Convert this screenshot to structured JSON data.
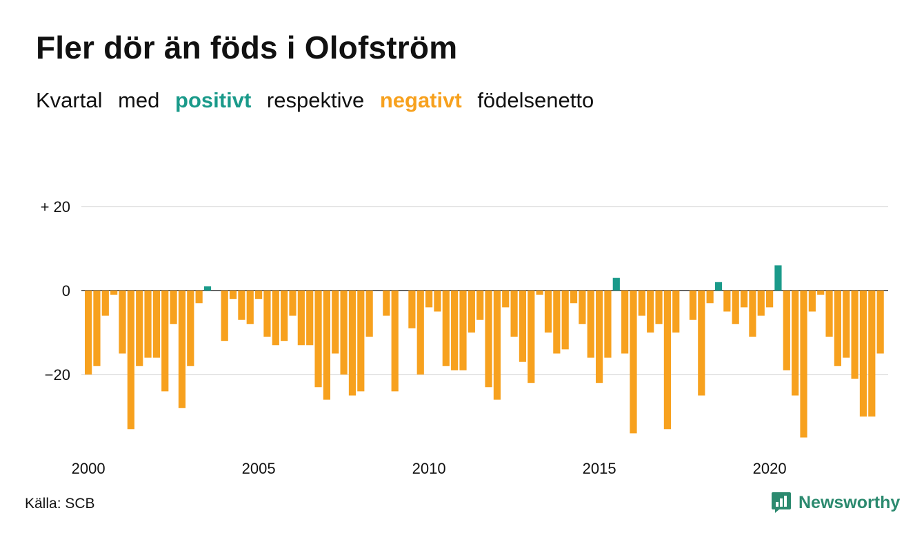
{
  "title": "Fler dör än föds i Olofström",
  "subtitle": {
    "w1": "Kvartal",
    "w2": "med",
    "positive": "positivt",
    "w3": "respektive",
    "negative": "negativt",
    "w4": "födelsenetto"
  },
  "colors": {
    "positive": "#1a9a8a",
    "negative": "#f7a11e",
    "text": "#111111",
    "grid": "#dddddd",
    "brand": "#2c8a6f"
  },
  "source": "Källa: SCB",
  "brand": {
    "name": "Newsworthy",
    "icon": "newsworthy-logo-icon"
  },
  "chart_data": {
    "type": "bar",
    "title": "Fler dör än föds i Olofström",
    "xlabel": "",
    "ylabel": "",
    "x_start": "2000 Q1",
    "x_end": "2023 Q3",
    "ylim": [
      -38,
      22
    ],
    "yticks": [
      20,
      0,
      -20
    ],
    "ytick_labels": [
      "+ 20",
      "0",
      "−20"
    ],
    "xticks": [
      "2000",
      "2005",
      "2010",
      "2015",
      "2020"
    ],
    "grid": true,
    "values": [
      -20,
      -18,
      -6,
      -1,
      -15,
      -33,
      -18,
      -16,
      -16,
      -24,
      -8,
      -28,
      -18,
      -3,
      1,
      0,
      -12,
      -2,
      -7,
      -8,
      -2,
      -11,
      -13,
      -12,
      -6,
      -13,
      -13,
      -23,
      -26,
      -15,
      -20,
      -25,
      -24,
      -11,
      0,
      -6,
      -24,
      0,
      -9,
      -20,
      -4,
      -5,
      -18,
      -19,
      -19,
      -10,
      -7,
      -23,
      -26,
      -4,
      -11,
      -17,
      -22,
      -1,
      -10,
      -15,
      -14,
      -3,
      -8,
      -16,
      -22,
      -16,
      3,
      -15,
      -34,
      -6,
      -10,
      -8,
      -33,
      -10,
      0,
      -7,
      -25,
      -3,
      2,
      -5,
      -8,
      -4,
      -11,
      -6,
      -4,
      6,
      -19,
      -25,
      -35,
      -5,
      -1,
      -11,
      -18,
      -16,
      -21,
      -30,
      -30,
      -15
    ]
  }
}
